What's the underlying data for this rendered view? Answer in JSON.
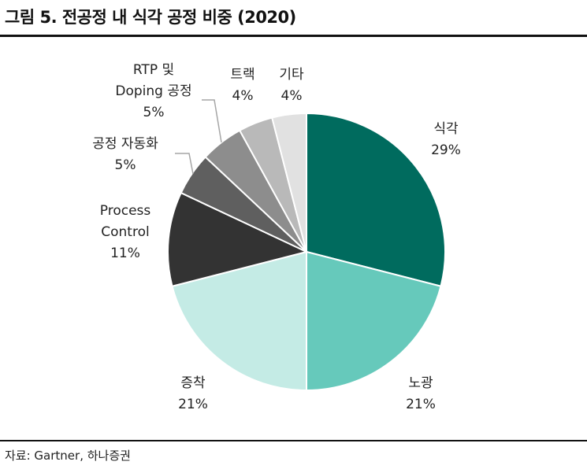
{
  "title": "그림 5. 전공정 내 식각 공정 비중 (2020)",
  "source": "자료: Gartner, 하나증권",
  "chart_data": {
    "type": "pie",
    "title": "그림 5. 전공정 내 식각 공정 비중 (2020)",
    "legend": "none",
    "slices": [
      {
        "name": "식각",
        "label_lines": [
          "식각"
        ],
        "value": 29,
        "display": "29%",
        "color": "#006b5e"
      },
      {
        "name": "노광",
        "label_lines": [
          "노광"
        ],
        "value": 21,
        "display": "21%",
        "color": "#66c9bb"
      },
      {
        "name": "증착",
        "label_lines": [
          "증착"
        ],
        "value": 21,
        "display": "21%",
        "color": "#c4ebe5"
      },
      {
        "name": "Process Control",
        "label_lines": [
          "Process",
          "Control"
        ],
        "value": 11,
        "display": "11%",
        "color": "#333333"
      },
      {
        "name": "공정 자동화",
        "label_lines": [
          "공정 자동화"
        ],
        "value": 5,
        "display": "5%",
        "color": "#5f5f5f"
      },
      {
        "name": "RTP 및 Doping 공정",
        "label_lines": [
          "RTP 및",
          "Doping 공정"
        ],
        "value": 5,
        "display": "5%",
        "color": "#8d8d8d"
      },
      {
        "name": "트랙",
        "label_lines": [
          "트랙"
        ],
        "value": 4,
        "display": "4%",
        "color": "#b9b9b9"
      },
      {
        "name": "기타",
        "label_lines": [
          "기타"
        ],
        "value": 4,
        "display": "4%",
        "color": "#e1e1e1"
      }
    ]
  }
}
